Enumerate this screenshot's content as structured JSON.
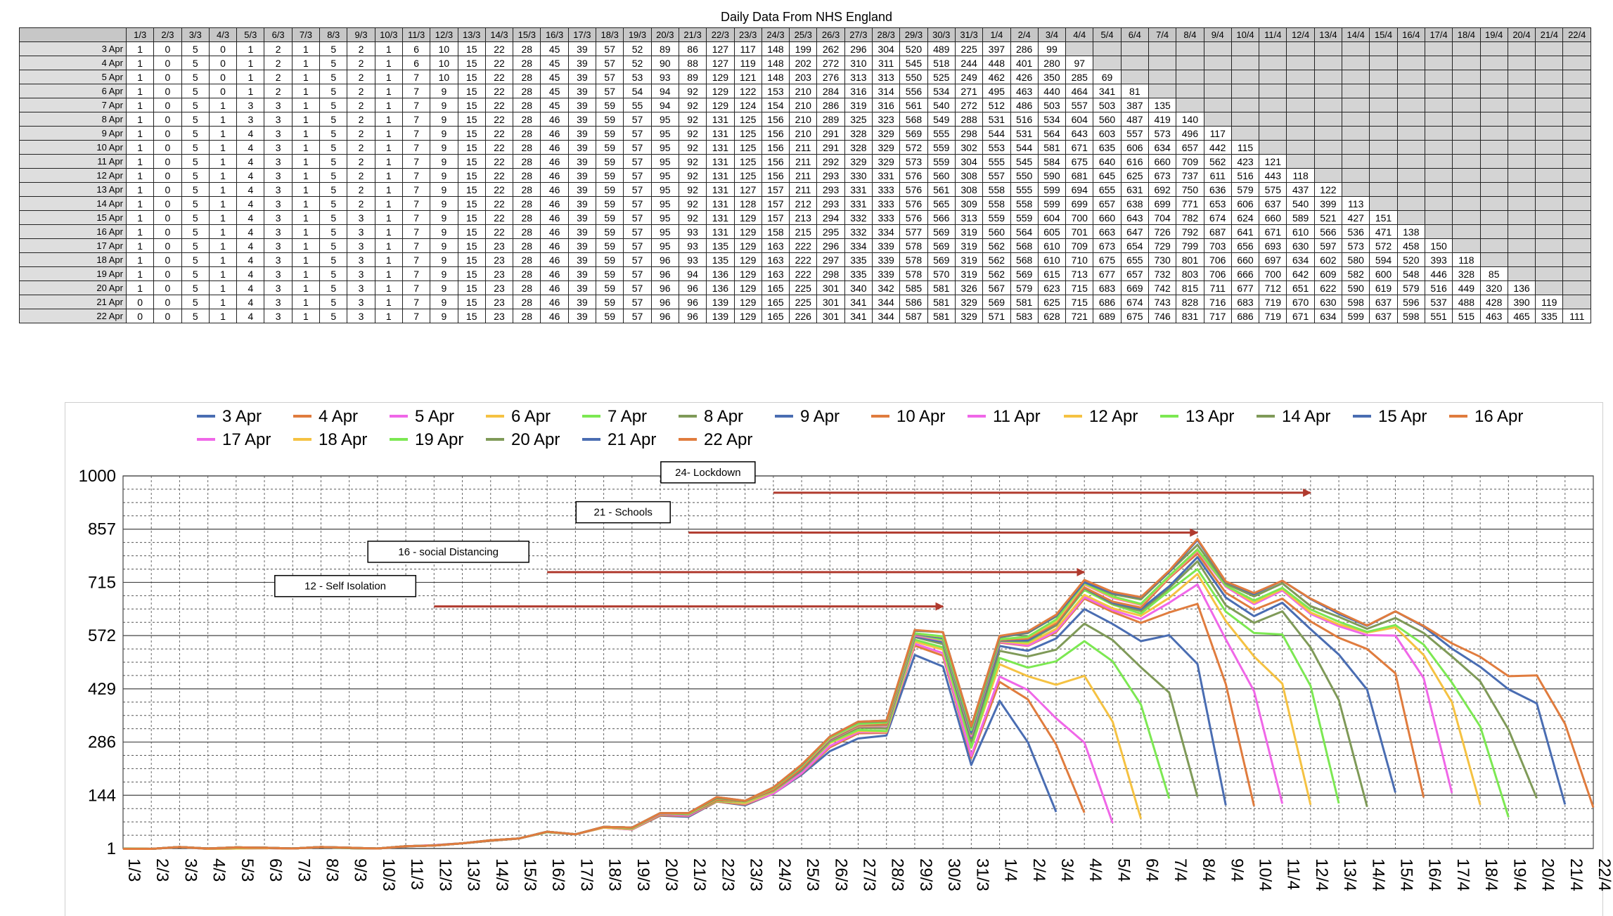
{
  "colors": {
    "table_header_bg": "#c7c7c7",
    "row_header_bg": "#dedede",
    "empty_cell_bg": "#d4d4d4",
    "arrow": "#b03a2e",
    "series_palette": [
      "#4a6db2",
      "#e07c3e",
      "#f067e8",
      "#f5c242",
      "#7ce852",
      "#7f9a58"
    ]
  },
  "table": {
    "title": "Daily Data From NHS England",
    "columns": [
      "1/3",
      "2/3",
      "3/3",
      "4/3",
      "5/3",
      "6/3",
      "7/3",
      "8/3",
      "9/3",
      "10/3",
      "11/3",
      "12/3",
      "13/3",
      "14/3",
      "15/3",
      "16/3",
      "17/3",
      "18/3",
      "19/3",
      "20/3",
      "21/3",
      "22/3",
      "23/3",
      "24/3",
      "25/3",
      "26/3",
      "27/3",
      "28/3",
      "29/3",
      "30/3",
      "31/3",
      "1/4",
      "2/4",
      "3/4",
      "4/4",
      "5/4",
      "6/4",
      "7/4",
      "8/4",
      "9/4",
      "10/4",
      "11/4",
      "12/4",
      "13/4",
      "14/4",
      "15/4",
      "16/4",
      "17/4",
      "18/4",
      "19/4",
      "20/4",
      "21/4",
      "22/4"
    ],
    "rows": [
      {
        "label": "3 Apr",
        "values": [
          1,
          0,
          5,
          0,
          1,
          2,
          1,
          5,
          2,
          1,
          6,
          10,
          15,
          22,
          28,
          45,
          39,
          57,
          52,
          89,
          86,
          127,
          117,
          148,
          199,
          262,
          296,
          304,
          520,
          489,
          225,
          397,
          286,
          99
        ]
      },
      {
        "label": "4 Apr",
        "values": [
          1,
          0,
          5,
          0,
          1,
          2,
          1,
          5,
          2,
          1,
          6,
          10,
          15,
          22,
          28,
          45,
          39,
          57,
          52,
          90,
          88,
          127,
          119,
          148,
          202,
          272,
          310,
          311,
          545,
          518,
          244,
          448,
          401,
          280,
          97
        ]
      },
      {
        "label": "5 Apr",
        "values": [
          1,
          0,
          5,
          0,
          1,
          2,
          1,
          5,
          2,
          1,
          7,
          10,
          15,
          22,
          28,
          45,
          39,
          57,
          53,
          93,
          89,
          129,
          121,
          148,
          203,
          276,
          313,
          313,
          550,
          525,
          249,
          462,
          426,
          350,
          285,
          69
        ]
      },
      {
        "label": "6 Apr",
        "values": [
          1,
          0,
          5,
          0,
          1,
          2,
          1,
          5,
          2,
          1,
          7,
          9,
          15,
          22,
          28,
          45,
          39,
          57,
          54,
          94,
          92,
          129,
          122,
          153,
          210,
          284,
          316,
          314,
          556,
          534,
          271,
          495,
          463,
          440,
          464,
          341,
          81
        ]
      },
      {
        "label": "7 Apr",
        "values": [
          1,
          0,
          5,
          1,
          3,
          3,
          1,
          5,
          2,
          1,
          7,
          9,
          15,
          22,
          28,
          45,
          39,
          59,
          55,
          94,
          92,
          129,
          124,
          154,
          210,
          286,
          319,
          316,
          561,
          540,
          272,
          512,
          486,
          503,
          557,
          503,
          387,
          135
        ]
      },
      {
        "label": "8 Apr",
        "values": [
          1,
          0,
          5,
          1,
          3,
          3,
          1,
          5,
          2,
          1,
          7,
          9,
          15,
          22,
          28,
          46,
          39,
          59,
          57,
          95,
          92,
          131,
          125,
          156,
          210,
          289,
          325,
          323,
          568,
          549,
          288,
          531,
          516,
          534,
          604,
          560,
          487,
          419,
          140
        ]
      },
      {
        "label": "9 Apr",
        "values": [
          1,
          0,
          5,
          1,
          4,
          3,
          1,
          5,
          2,
          1,
          7,
          9,
          15,
          22,
          28,
          46,
          39,
          59,
          57,
          95,
          92,
          131,
          125,
          156,
          210,
          291,
          328,
          329,
          569,
          555,
          298,
          544,
          531,
          564,
          643,
          603,
          557,
          573,
          496,
          117
        ]
      },
      {
        "label": "10 Apr",
        "values": [
          1,
          0,
          5,
          1,
          4,
          3,
          1,
          5,
          2,
          1,
          7,
          9,
          15,
          22,
          28,
          46,
          39,
          59,
          57,
          95,
          92,
          131,
          125,
          156,
          211,
          291,
          328,
          329,
          572,
          559,
          302,
          553,
          544,
          581,
          671,
          635,
          606,
          634,
          657,
          442,
          115
        ]
      },
      {
        "label": "11 Apr",
        "values": [
          1,
          0,
          5,
          1,
          4,
          3,
          1,
          5,
          2,
          1,
          7,
          9,
          15,
          22,
          28,
          46,
          39,
          59,
          57,
          95,
          92,
          131,
          125,
          156,
          211,
          292,
          329,
          329,
          573,
          559,
          304,
          555,
          545,
          584,
          675,
          640,
          616,
          660,
          709,
          562,
          423,
          121
        ]
      },
      {
        "label": "12 Apr",
        "values": [
          1,
          0,
          5,
          1,
          4,
          3,
          1,
          5,
          2,
          1,
          7,
          9,
          15,
          22,
          28,
          46,
          39,
          59,
          57,
          95,
          92,
          131,
          125,
          156,
          211,
          293,
          330,
          331,
          576,
          560,
          308,
          557,
          550,
          590,
          681,
          645,
          625,
          673,
          737,
          611,
          516,
          443,
          118
        ]
      },
      {
        "label": "13 Apr",
        "values": [
          1,
          0,
          5,
          1,
          4,
          3,
          1,
          5,
          2,
          1,
          7,
          9,
          15,
          22,
          28,
          46,
          39,
          59,
          57,
          95,
          92,
          131,
          127,
          157,
          211,
          293,
          331,
          333,
          576,
          561,
          308,
          558,
          555,
          599,
          694,
          655,
          631,
          692,
          750,
          636,
          579,
          575,
          437,
          122
        ]
      },
      {
        "label": "14 Apr",
        "values": [
          1,
          0,
          5,
          1,
          4,
          3,
          1,
          5,
          2,
          1,
          7,
          9,
          15,
          22,
          28,
          46,
          39,
          59,
          57,
          95,
          92,
          131,
          128,
          157,
          212,
          293,
          331,
          333,
          576,
          565,
          309,
          558,
          558,
          599,
          699,
          657,
          638,
          699,
          771,
          653,
          606,
          637,
          540,
          399,
          113
        ]
      },
      {
        "label": "15 Apr",
        "values": [
          1,
          0,
          5,
          1,
          4,
          3,
          1,
          5,
          3,
          1,
          7,
          9,
          15,
          22,
          28,
          46,
          39,
          59,
          57,
          95,
          92,
          131,
          129,
          157,
          213,
          294,
          332,
          333,
          576,
          566,
          313,
          559,
          559,
          604,
          700,
          660,
          643,
          704,
          782,
          674,
          624,
          660,
          589,
          521,
          427,
          151
        ]
      },
      {
        "label": "16 Apr",
        "values": [
          1,
          0,
          5,
          1,
          4,
          3,
          1,
          5,
          3,
          1,
          7,
          9,
          15,
          22,
          28,
          46,
          39,
          59,
          57,
          95,
          93,
          131,
          129,
          158,
          215,
          295,
          332,
          334,
          577,
          569,
          319,
          560,
          564,
          605,
          701,
          663,
          647,
          726,
          792,
          687,
          641,
          671,
          610,
          566,
          536,
          471,
          138
        ]
      },
      {
        "label": "17 Apr",
        "values": [
          1,
          0,
          5,
          1,
          4,
          3,
          1,
          5,
          3,
          1,
          7,
          9,
          15,
          23,
          28,
          46,
          39,
          59,
          57,
          95,
          93,
          135,
          129,
          163,
          222,
          296,
          334,
          339,
          578,
          569,
          319,
          562,
          568,
          610,
          709,
          673,
          654,
          729,
          799,
          703,
          656,
          693,
          630,
          597,
          573,
          572,
          458,
          150
        ]
      },
      {
        "label": "18 Apr",
        "values": [
          1,
          0,
          5,
          1,
          4,
          3,
          1,
          5,
          3,
          1,
          7,
          9,
          15,
          23,
          28,
          46,
          39,
          59,
          57,
          96,
          93,
          135,
          129,
          163,
          222,
          297,
          335,
          339,
          578,
          569,
          319,
          562,
          568,
          610,
          710,
          675,
          655,
          730,
          801,
          706,
          660,
          697,
          634,
          602,
          580,
          594,
          520,
          393,
          118
        ]
      },
      {
        "label": "19 Apr",
        "values": [
          1,
          0,
          5,
          1,
          4,
          3,
          1,
          5,
          3,
          1,
          7,
          9,
          15,
          23,
          28,
          46,
          39,
          59,
          57,
          96,
          94,
          136,
          129,
          163,
          222,
          298,
          335,
          339,
          578,
          570,
          319,
          562,
          569,
          615,
          713,
          677,
          657,
          732,
          803,
          706,
          666,
          700,
          642,
          609,
          582,
          600,
          548,
          446,
          328,
          85
        ]
      },
      {
        "label": "20 Apr",
        "values": [
          1,
          0,
          5,
          1,
          4,
          3,
          1,
          5,
          3,
          1,
          7,
          9,
          15,
          23,
          28,
          46,
          39,
          59,
          57,
          96,
          96,
          136,
          129,
          165,
          225,
          301,
          340,
          342,
          585,
          581,
          326,
          567,
          579,
          623,
          715,
          683,
          669,
          742,
          815,
          711,
          677,
          712,
          651,
          622,
          590,
          619,
          579,
          516,
          449,
          320,
          136
        ]
      },
      {
        "label": "21 Apr",
        "values": [
          0,
          0,
          5,
          1,
          4,
          3,
          1,
          5,
          3,
          1,
          7,
          9,
          15,
          23,
          28,
          46,
          39,
          59,
          57,
          96,
          96,
          139,
          129,
          165,
          225,
          301,
          341,
          344,
          586,
          581,
          329,
          569,
          581,
          625,
          715,
          686,
          674,
          743,
          828,
          716,
          683,
          719,
          670,
          630,
          598,
          637,
          596,
          537,
          488,
          428,
          390,
          119
        ]
      },
      {
        "label": "22 Apr",
        "values": [
          0,
          0,
          5,
          1,
          4,
          3,
          1,
          5,
          3,
          1,
          7,
          9,
          15,
          23,
          28,
          46,
          39,
          59,
          57,
          96,
          96,
          139,
          129,
          165,
          226,
          301,
          341,
          344,
          587,
          581,
          329,
          571,
          583,
          628,
          721,
          689,
          675,
          746,
          831,
          717,
          686,
          719,
          671,
          634,
          599,
          637,
          598,
          551,
          515,
          463,
          465,
          335,
          111
        ]
      }
    ]
  },
  "chart_data": {
    "type": "line",
    "title": "",
    "xlabel": "",
    "ylabel": "",
    "x": [
      "1/3",
      "2/3",
      "3/3",
      "4/3",
      "5/3",
      "6/3",
      "7/3",
      "8/3",
      "9/3",
      "10/3",
      "11/3",
      "12/3",
      "13/3",
      "14/3",
      "15/3",
      "16/3",
      "17/3",
      "18/3",
      "19/3",
      "20/3",
      "21/3",
      "22/3",
      "23/3",
      "24/3",
      "25/3",
      "26/3",
      "27/3",
      "28/3",
      "29/3",
      "30/3",
      "31/3",
      "1/4",
      "2/4",
      "3/4",
      "4/4",
      "5/4",
      "6/4",
      "7/4",
      "8/4",
      "9/4",
      "10/4",
      "11/4",
      "12/4",
      "13/4",
      "14/4",
      "15/4",
      "16/4",
      "17/4",
      "18/4",
      "19/4",
      "20/4",
      "21/4",
      "22/4"
    ],
    "ylim": [
      1,
      1000
    ],
    "yticks": [
      "1",
      "144",
      "286",
      "429",
      "572",
      "715",
      "857",
      "1000"
    ],
    "legend_position": "top",
    "grid": true,
    "series_source": "table.rows",
    "legend": [
      "3 Apr",
      "4 Apr",
      "5 Apr",
      "6 Apr",
      "7 Apr",
      "8 Apr",
      "9 Apr",
      "10 Apr",
      "11 Apr",
      "12 Apr",
      "13 Apr",
      "14 Apr",
      "15 Apr",
      "16 Apr",
      "17 Apr",
      "18 Apr",
      "19 Apr",
      "20 Apr",
      "21 Apr",
      "22 Apr"
    ],
    "annotations": [
      {
        "label": "24- Lockdown",
        "from": "24/3",
        "to": "12/4",
        "y": 955
      },
      {
        "label": "21 - Schools",
        "from": "21/3",
        "to": "8/4",
        "y": 848
      },
      {
        "label": "16 - social Distancing",
        "from": "16/3",
        "to": "4/4",
        "y": 742
      },
      {
        "label": "12 - Self Isolation",
        "from": "12/3",
        "to": "30/3",
        "y": 650
      }
    ]
  }
}
